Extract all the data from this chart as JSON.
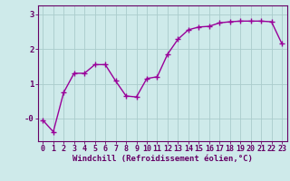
{
  "x": [
    0,
    1,
    2,
    3,
    4,
    5,
    6,
    7,
    8,
    9,
    10,
    11,
    12,
    13,
    14,
    15,
    16,
    17,
    18,
    19,
    20,
    21,
    22,
    23
  ],
  "y": [
    -0.05,
    -0.38,
    0.75,
    1.3,
    1.3,
    1.55,
    1.55,
    1.08,
    0.65,
    0.62,
    1.15,
    1.2,
    1.85,
    2.28,
    2.55,
    2.63,
    2.65,
    2.75,
    2.78,
    2.8,
    2.8,
    2.8,
    2.78,
    2.15
  ],
  "line_color": "#990099",
  "marker": "+",
  "marker_size": 4,
  "marker_linewidth": 1.0,
  "linewidth": 1.0,
  "background_color": "#ceeaea",
  "grid_color": "#aacccc",
  "axis_color": "#660066",
  "spine_color": "#660066",
  "xlabel": "Windchill (Refroidissement éolien,°C)",
  "xlabel_fontsize": 6.5,
  "tick_fontsize": 6,
  "ylim": [
    -0.65,
    3.25
  ],
  "xlim": [
    -0.5,
    23.5
  ],
  "yticks": [
    0,
    1,
    2,
    3
  ],
  "ytick_labels": [
    "-0",
    "1",
    "2",
    "3"
  ],
  "xtick_labels": [
    "0",
    "1",
    "2",
    "3",
    "4",
    "5",
    "6",
    "7",
    "8",
    "9",
    "10",
    "11",
    "12",
    "13",
    "14",
    "15",
    "16",
    "17",
    "18",
    "19",
    "20",
    "21",
    "22",
    "23"
  ]
}
